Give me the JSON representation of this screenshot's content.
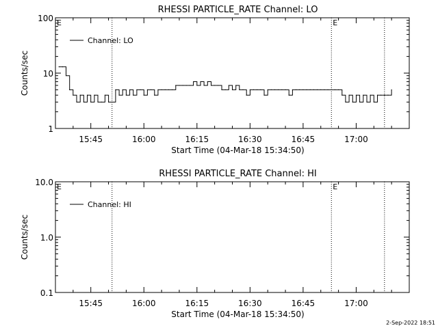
{
  "footer_timestamp": "2-Sep-2022 18:51",
  "chart_data": [
    {
      "type": "line",
      "title": "RHESSI PARTICLE_RATE Channel: LO",
      "xlabel": "Start Time (04-Mar-18 15:34:50)",
      "ylabel": "Counts/sec",
      "yscale": "log",
      "ylim": [
        1,
        100
      ],
      "yticks": [
        1,
        10,
        100
      ],
      "ytick_labels": [
        "1",
        "10",
        "100"
      ],
      "xlim": [
        "15:35",
        "17:15"
      ],
      "xticks": [
        "15:45",
        "16:00",
        "16:15",
        "16:30",
        "16:45",
        "17:00"
      ],
      "legend": "top-left",
      "grid": false,
      "series": [
        {
          "name": "Channel: LO",
          "x": [
            "15:36",
            "15:37",
            "15:38",
            "15:39",
            "15:40",
            "15:41",
            "15:42",
            "15:43",
            "15:44",
            "15:45",
            "15:46",
            "15:47",
            "15:48",
            "15:49",
            "15:50",
            "15:51",
            "15:52",
            "15:53",
            "15:54",
            "15:55",
            "15:56",
            "15:57",
            "15:58",
            "15:59",
            "16:00",
            "16:01",
            "16:02",
            "16:03",
            "16:04",
            "16:05",
            "16:06",
            "16:07",
            "16:08",
            "16:09",
            "16:10",
            "16:11",
            "16:12",
            "16:13",
            "16:14",
            "16:15",
            "16:16",
            "16:17",
            "16:18",
            "16:19",
            "16:20",
            "16:21",
            "16:22",
            "16:23",
            "16:24",
            "16:25",
            "16:26",
            "16:27",
            "16:28",
            "16:29",
            "16:30",
            "16:31",
            "16:32",
            "16:33",
            "16:34",
            "16:35",
            "16:36",
            "16:37",
            "16:38",
            "16:39",
            "16:40",
            "16:41",
            "16:42",
            "16:43",
            "16:44",
            "16:45",
            "16:46",
            "16:47",
            "16:48",
            "16:49",
            "16:50",
            "16:51",
            "16:52",
            "16:53",
            "16:54",
            "16:55",
            "16:56",
            "16:57",
            "16:58",
            "16:59",
            "17:00",
            "17:01",
            "17:02",
            "17:03",
            "17:04",
            "17:05",
            "17:06",
            "17:07",
            "17:08",
            "17:09",
            "17:10"
          ],
          "values": [
            13,
            13,
            9,
            5,
            4,
            3,
            4,
            3,
            4,
            3,
            4,
            3,
            3,
            4,
            3,
            3,
            5,
            4,
            5,
            4,
            5,
            4,
            5,
            5,
            4,
            5,
            5,
            4,
            5,
            5,
            5,
            5,
            5,
            6,
            6,
            6,
            6,
            6,
            7,
            6,
            7,
            6,
            7,
            6,
            6,
            6,
            5,
            5,
            6,
            5,
            6,
            5,
            5,
            4,
            5,
            5,
            5,
            5,
            4,
            5,
            5,
            5,
            5,
            5,
            5,
            4,
            5,
            5,
            5,
            5,
            5,
            5,
            5,
            5,
            5,
            5,
            5,
            5,
            5,
            5,
            4,
            3,
            4,
            3,
            4,
            3,
            4,
            3,
            4,
            3,
            4,
            4,
            4,
            4,
            5
          ]
        }
      ],
      "annotations": [
        {
          "text": "E",
          "x": "15:35"
        },
        {
          "text": "E",
          "x": "16:53"
        }
      ],
      "markers": [
        "15:51",
        "16:53",
        "17:08"
      ]
    },
    {
      "type": "line",
      "title": "RHESSI PARTICLE_RATE Channel: HI",
      "xlabel": "Start Time (04-Mar-18 15:34:50)",
      "ylabel": "Counts/sec",
      "yscale": "log",
      "ylim": [
        0.1,
        10
      ],
      "yticks": [
        0.1,
        1,
        10
      ],
      "ytick_labels": [
        "0.1",
        "1.0",
        "10.0"
      ],
      "xlim": [
        "15:35",
        "17:15"
      ],
      "xticks": [
        "15:45",
        "16:00",
        "16:15",
        "16:30",
        "16:45",
        "17:00"
      ],
      "legend": "top-left",
      "grid": false,
      "series": [
        {
          "name": "Channel: HI",
          "x": [],
          "values": []
        }
      ],
      "annotations": [
        {
          "text": "E",
          "x": "15:35"
        },
        {
          "text": "E",
          "x": "16:53"
        }
      ],
      "markers": [
        "15:51",
        "16:53",
        "17:08"
      ]
    }
  ]
}
